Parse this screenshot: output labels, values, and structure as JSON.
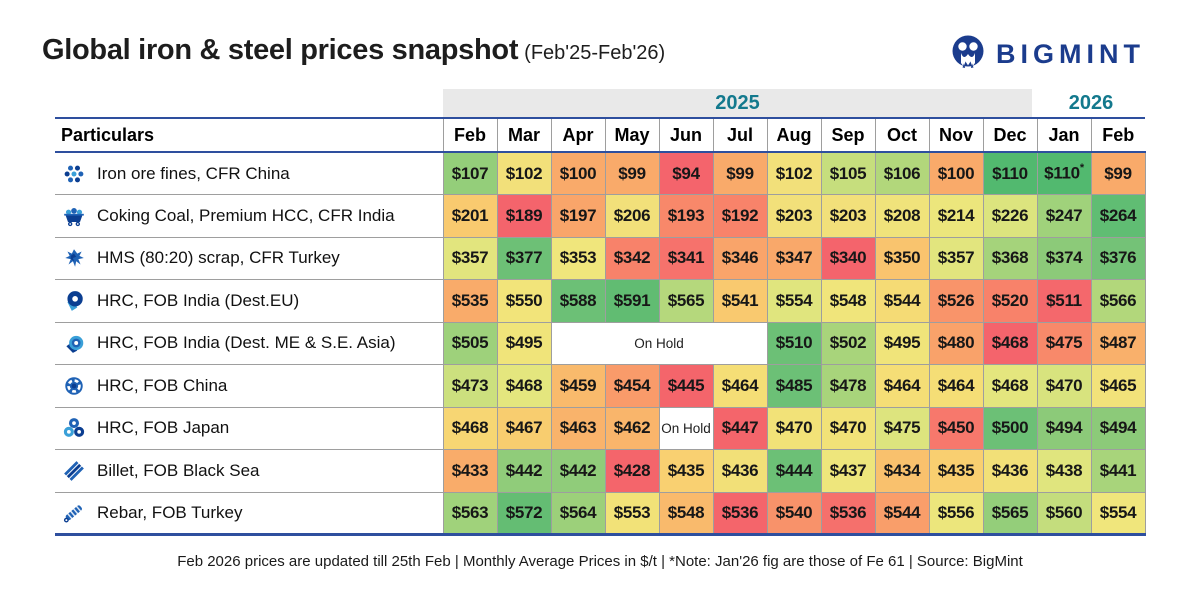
{
  "header": {
    "title": "Global iron & steel prices snapshot",
    "subtitle": "(Feb'25-Feb'26)",
    "logo_text": "BIGMINT",
    "logo_color": "#1b3c8d"
  },
  "colors": {
    "accent_navy": "#2e4f9e",
    "year_teal": "#13798d",
    "year_band_gray": "#e9e9e9",
    "grid_gray": "#9e9e9e"
  },
  "table": {
    "particulars_header": "Particulars",
    "year_groups": [
      {
        "label": "2025",
        "span": 11,
        "shaded": true
      },
      {
        "label": "2026",
        "span": 2,
        "shaded": false
      }
    ],
    "months": [
      "Feb",
      "Mar",
      "Apr",
      "May",
      "Jun",
      "Jul",
      "Aug",
      "Sep",
      "Oct",
      "Nov",
      "Dec",
      "Jan",
      "Feb"
    ],
    "on_hold_label": "On Hold",
    "rows": [
      {
        "icon": "iron-ore-icon",
        "label": "Iron ore fines, CFR China",
        "cells": [
          {
            "t": "$107",
            "c": "#94ce7a"
          },
          {
            "t": "$102",
            "c": "#f2e07a"
          },
          {
            "t": "$100",
            "c": "#f9aa6a"
          },
          {
            "t": "$99",
            "c": "#f9aa6a"
          },
          {
            "t": "$94",
            "c": "#f4646c"
          },
          {
            "t": "$99",
            "c": "#f9aa6a"
          },
          {
            "t": "$102",
            "c": "#f2e07a"
          },
          {
            "t": "$105",
            "c": "#c6de7d"
          },
          {
            "t": "$106",
            "c": "#b2d77b"
          },
          {
            "t": "$100",
            "c": "#f9aa6a"
          },
          {
            "t": "$110",
            "c": "#52b96f"
          },
          {
            "t": "$110",
            "sup": "*",
            "c": "#52b96f"
          },
          {
            "t": "$99",
            "c": "#f9aa6a"
          }
        ]
      },
      {
        "icon": "coal-cart-icon",
        "label": "Coking Coal, Premium HCC, CFR India",
        "cells": [
          {
            "t": "$201",
            "c": "#f9ca6f"
          },
          {
            "t": "$189",
            "c": "#f4646c"
          },
          {
            "t": "$197",
            "c": "#f9a56a"
          },
          {
            "t": "$206",
            "c": "#f2e07a"
          },
          {
            "t": "$193",
            "c": "#f8886a"
          },
          {
            "t": "$192",
            "c": "#f8836a"
          },
          {
            "t": "$203",
            "c": "#f2e07a"
          },
          {
            "t": "$203",
            "c": "#f2e07a"
          },
          {
            "t": "$208",
            "c": "#f0e37b"
          },
          {
            "t": "$214",
            "c": "#ece67c"
          },
          {
            "t": "$226",
            "c": "#dce47e"
          },
          {
            "t": "$247",
            "c": "#a0d27b"
          },
          {
            "t": "$264",
            "c": "#60bd73"
          }
        ]
      },
      {
        "icon": "scrap-icon",
        "label": "HMS (80:20) scrap, CFR Turkey",
        "cells": [
          {
            "t": "$357",
            "c": "#e2e57e"
          },
          {
            "t": "$377",
            "c": "#6dc076"
          },
          {
            "t": "$353",
            "c": "#f0e67c"
          },
          {
            "t": "$342",
            "c": "#f8826a"
          },
          {
            "t": "$341",
            "c": "#f6726c"
          },
          {
            "t": "$346",
            "c": "#f9a46a"
          },
          {
            "t": "$347",
            "c": "#f9a86a"
          },
          {
            "t": "$340",
            "c": "#f4646c"
          },
          {
            "t": "$350",
            "c": "#f9c46e"
          },
          {
            "t": "$357",
            "c": "#e2e57e"
          },
          {
            "t": "$368",
            "c": "#a5d37b"
          },
          {
            "t": "$374",
            "c": "#8cca79"
          },
          {
            "t": "$376",
            "c": "#74c277"
          }
        ]
      },
      {
        "icon": "coil-icon",
        "label": "HRC, FOB India (Dest.EU)",
        "cells": [
          {
            "t": "$535",
            "c": "#f9ab6a"
          },
          {
            "t": "$550",
            "c": "#f2e47a"
          },
          {
            "t": "$588",
            "c": "#6cc076"
          },
          {
            "t": "$591",
            "c": "#61bc72"
          },
          {
            "t": "$565",
            "c": "#b5d87c"
          },
          {
            "t": "$541",
            "c": "#f9c96f"
          },
          {
            "t": "$554",
            "c": "#e0e57e"
          },
          {
            "t": "$548",
            "c": "#f0e57b"
          },
          {
            "t": "$544",
            "c": "#f5db75"
          },
          {
            "t": "$526",
            "c": "#f9946a"
          },
          {
            "t": "$520",
            "c": "#f8826a"
          },
          {
            "t": "$511",
            "c": "#f4686c"
          },
          {
            "t": "$566",
            "c": "#b2d77b"
          }
        ]
      },
      {
        "icon": "coil-swirl-icon",
        "label": "HRC, FOB India (Dest. ME & S.E. Asia)",
        "cells": [
          {
            "t": "$505",
            "c": "#9ed17b"
          },
          {
            "t": "$495",
            "c": "#f0e47a"
          },
          {
            "t": "On Hold",
            "c": "#ffffff",
            "span": 4,
            "hold": true
          },
          {
            "t": "$510",
            "c": "#6cc076"
          },
          {
            "t": "$502",
            "c": "#a8d47b"
          },
          {
            "t": "$495",
            "c": "#f0e47a"
          },
          {
            "t": "$480",
            "c": "#f9a26a"
          },
          {
            "t": "$468",
            "c": "#f4646c"
          },
          {
            "t": "$475",
            "c": "#f8896a"
          },
          {
            "t": "$487",
            "c": "#f9b06b"
          }
        ]
      },
      {
        "icon": "coil-segment-icon",
        "label": "HRC, FOB China",
        "cells": [
          {
            "t": "$473",
            "c": "#cce07e"
          },
          {
            "t": "$468",
            "c": "#e4e67e"
          },
          {
            "t": "$459",
            "c": "#f9ba6c"
          },
          {
            "t": "$454",
            "c": "#f99b6a"
          },
          {
            "t": "$445",
            "c": "#f4656b"
          },
          {
            "t": "$464",
            "c": "#f5de76"
          },
          {
            "t": "$485",
            "c": "#6cc076"
          },
          {
            "t": "$478",
            "c": "#a8d47b"
          },
          {
            "t": "$464",
            "c": "#f5de76"
          },
          {
            "t": "$464",
            "c": "#f5de76"
          },
          {
            "t": "$468",
            "c": "#e4e67e"
          },
          {
            "t": "$470",
            "c": "#d8e37e"
          },
          {
            "t": "$465",
            "c": "#f2e27a"
          }
        ]
      },
      {
        "icon": "coils-icon",
        "label": "HRC, FOB Japan",
        "cells": [
          {
            "t": "$468",
            "c": "#f7d673"
          },
          {
            "t": "$467",
            "c": "#f8cd6f"
          },
          {
            "t": "$463",
            "c": "#f9b36b"
          },
          {
            "t": "$462",
            "c": "#f9b56b"
          },
          {
            "t": "On Hold",
            "c": "#ffffff",
            "hold": true
          },
          {
            "t": "$447",
            "c": "#f4656b"
          },
          {
            "t": "$470",
            "c": "#f2e278"
          },
          {
            "t": "$470",
            "c": "#f2e278"
          },
          {
            "t": "$475",
            "c": "#dde47e"
          },
          {
            "t": "$450",
            "c": "#f7786c"
          },
          {
            "t": "$500",
            "c": "#6cc076"
          },
          {
            "t": "$494",
            "c": "#8cca79"
          },
          {
            "t": "$494",
            "c": "#8cca79"
          }
        ]
      },
      {
        "icon": "billet-icon",
        "label": "Billet, FOB Black Sea",
        "cells": [
          {
            "t": "$433",
            "c": "#f9ac6a"
          },
          {
            "t": "$442",
            "c": "#90cc7a"
          },
          {
            "t": "$442",
            "c": "#90cc7a"
          },
          {
            "t": "$428",
            "c": "#f4656b"
          },
          {
            "t": "$435",
            "c": "#f9d071"
          },
          {
            "t": "$436",
            "c": "#f2e078"
          },
          {
            "t": "$444",
            "c": "#6cc076"
          },
          {
            "t": "$437",
            "c": "#eee67c"
          },
          {
            "t": "$434",
            "c": "#f9c16d"
          },
          {
            "t": "$435",
            "c": "#f9cf70"
          },
          {
            "t": "$436",
            "c": "#f2e078"
          },
          {
            "t": "$438",
            "c": "#e0e57e"
          },
          {
            "t": "$441",
            "c": "#a8d47b"
          }
        ]
      },
      {
        "icon": "rebar-icon",
        "label": "Rebar, FOB Turkey",
        "cells": [
          {
            "t": "$563",
            "c": "#a0d27b"
          },
          {
            "t": "$572",
            "c": "#64bd73"
          },
          {
            "t": "$564",
            "c": "#9cd07a"
          },
          {
            "t": "$553",
            "c": "#f2e278"
          },
          {
            "t": "$548",
            "c": "#f9ba6c"
          },
          {
            "t": "$536",
            "c": "#f4656b"
          },
          {
            "t": "$540",
            "c": "#f8926a"
          },
          {
            "t": "$536",
            "c": "#f5706c"
          },
          {
            "t": "$544",
            "c": "#f99e6a"
          },
          {
            "t": "$556",
            "c": "#ece67c"
          },
          {
            "t": "$565",
            "c": "#94ce7a"
          },
          {
            "t": "$560",
            "c": "#c4dd7d"
          },
          {
            "t": "$554",
            "c": "#f0e67c"
          }
        ]
      }
    ]
  },
  "footer": {
    "text": "Feb 2026 prices are updated till 25th Feb  |  Monthly Average Prices in $/t  |  *Note: Jan'26 fig are those of Fe 61  |  Source: BigMint"
  },
  "chart_data": {
    "type": "heatmap",
    "title": "Global iron & steel prices snapshot (Feb'25-Feb'26)",
    "x": [
      "Feb'25",
      "Mar'25",
      "Apr'25",
      "May'25",
      "Jun'25",
      "Jul'25",
      "Aug'25",
      "Sep'25",
      "Oct'25",
      "Nov'25",
      "Dec'25",
      "Jan'26",
      "Feb'26"
    ],
    "units": "$/t",
    "null_meaning": "On Hold",
    "series": [
      {
        "name": "Iron ore fines, CFR China",
        "values": [
          107,
          102,
          100,
          99,
          94,
          99,
          102,
          105,
          106,
          100,
          110,
          110,
          99
        ]
      },
      {
        "name": "Coking Coal, Premium HCC, CFR India",
        "values": [
          201,
          189,
          197,
          206,
          193,
          192,
          203,
          203,
          208,
          214,
          226,
          247,
          264
        ]
      },
      {
        "name": "HMS (80:20) scrap, CFR Turkey",
        "values": [
          357,
          377,
          353,
          342,
          341,
          346,
          347,
          340,
          350,
          357,
          368,
          374,
          376
        ]
      },
      {
        "name": "HRC, FOB India (Dest.EU)",
        "values": [
          535,
          550,
          588,
          591,
          565,
          541,
          554,
          548,
          544,
          526,
          520,
          511,
          566
        ]
      },
      {
        "name": "HRC, FOB India (Dest. ME & S.E. Asia)",
        "values": [
          505,
          495,
          null,
          null,
          null,
          null,
          510,
          502,
          495,
          480,
          468,
          475,
          487
        ]
      },
      {
        "name": "HRC, FOB China",
        "values": [
          473,
          468,
          459,
          454,
          445,
          464,
          485,
          478,
          464,
          464,
          468,
          470,
          465
        ]
      },
      {
        "name": "HRC, FOB Japan",
        "values": [
          468,
          467,
          463,
          462,
          null,
          447,
          470,
          470,
          475,
          450,
          500,
          494,
          494
        ]
      },
      {
        "name": "Billet, FOB Black Sea",
        "values": [
          433,
          442,
          442,
          428,
          435,
          436,
          444,
          437,
          434,
          435,
          436,
          438,
          441
        ]
      },
      {
        "name": "Rebar, FOB Turkey",
        "values": [
          563,
          572,
          564,
          553,
          548,
          536,
          540,
          536,
          544,
          556,
          565,
          560,
          554
        ]
      }
    ],
    "legend_position": "none",
    "color_scale": "red (row low) to green (row high)"
  }
}
